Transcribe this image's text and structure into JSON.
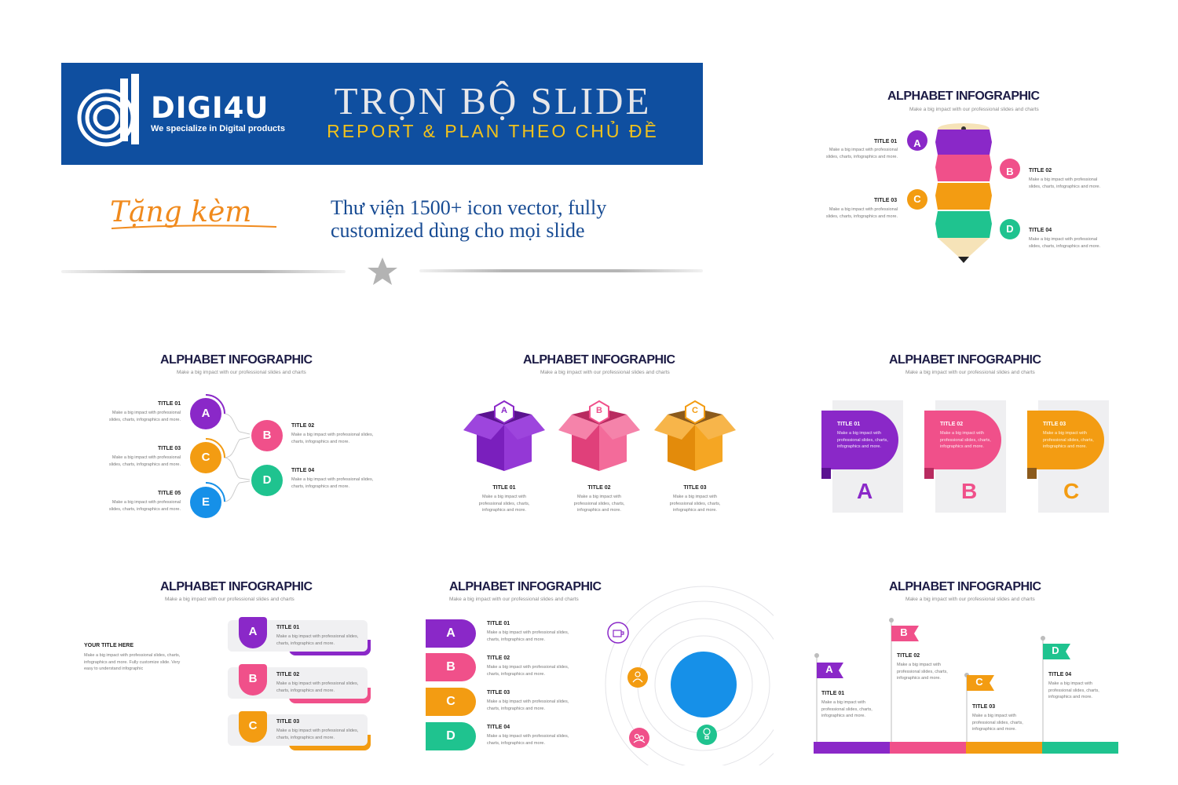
{
  "banner": {
    "brand": "DIGI4U",
    "tagline": "We specialize in Digital products",
    "title": "TRỌN BỘ SLIDE",
    "subtitle": "REPORT & PLAN THEO CHỦ ĐỀ"
  },
  "bonus": {
    "label": "Tặng kèm",
    "line1": "Thư viện 1500+ icon vector, fully",
    "line2": "customized dùng cho mọi slide"
  },
  "slide_common": {
    "title": "ALPHABET INFOGRAPHIC",
    "subtitle": "Make a big impact with our professional slides and charts"
  },
  "colors": {
    "purple": "#8a28c8",
    "pink": "#f0508a",
    "orange": "#f39c12",
    "green": "#1fc38f",
    "blue": "#1690e8",
    "navy": "#0f4fa0"
  },
  "slides": {
    "pencil": {
      "items": [
        {
          "letter": "A",
          "title": "TITLE 01",
          "desc": "Make a big impact with professional slides, charts, infographics and more."
        },
        {
          "letter": "B",
          "title": "TITLE 02",
          "desc": "Make a big impact with professional slides, charts, infographics and more."
        },
        {
          "letter": "C",
          "title": "TITLE 03",
          "desc": "Make a big impact with professional slides, charts, infographics and more."
        },
        {
          "letter": "D",
          "title": "TITLE 04",
          "desc": "Make a big impact with professional slides, charts, infographics and more."
        }
      ]
    },
    "circles": {
      "items": [
        {
          "letter": "A",
          "title": "TITLE 01",
          "desc": "Make a big impact with professional slides, charts, infographics and more."
        },
        {
          "letter": "B",
          "title": "TITLE 02",
          "desc": "Make a big impact with professional slides, charts, infographics and more."
        },
        {
          "letter": "C",
          "title": "TITLE 03",
          "desc": "Make a big impact with professional slides, charts, infographics and more."
        },
        {
          "letter": "D",
          "title": "TITLE 04",
          "desc": "Make a big impact with professional slides, charts, infographics and more."
        },
        {
          "letter": "E",
          "title": "TITLE 05",
          "desc": "Make a big impact with professional slides, charts, infographics and more."
        }
      ]
    },
    "boxes": {
      "items": [
        {
          "letter": "A",
          "title": "TITLE 01",
          "desc": "Make a big impact with professional slides, charts, infographics and more."
        },
        {
          "letter": "B",
          "title": "TITLE 02",
          "desc": "Make a big impact with professional slides, charts, infographics and more."
        },
        {
          "letter": "C",
          "title": "TITLE 03",
          "desc": "Make a big impact with professional slides, charts, infographics and more."
        }
      ]
    },
    "cards": {
      "items": [
        {
          "letter": "A",
          "title": "TITLE 01",
          "desc": "Make a big impact with professional slides, charts, infographics and more."
        },
        {
          "letter": "B",
          "title": "TITLE 02",
          "desc": "Make a big impact with professional slides, charts, infographics and more."
        },
        {
          "letter": "C",
          "title": "TITLE 03",
          "desc": "Make a big impact with professional slides, charts, infographics and more."
        }
      ]
    },
    "tabs": {
      "heading": "YOUR TITLE HERE",
      "heading_desc": "Make a big impact with professional slides, charts, infographics and more. Fully customize slide. Very easy to understand infographic",
      "items": [
        {
          "letter": "A",
          "title": "TITLE 01",
          "desc": "Make a big impact with professional slides, charts, infographics and more."
        },
        {
          "letter": "B",
          "title": "TITLE 02",
          "desc": "Make a big impact with professional slides, charts, infographics and more."
        },
        {
          "letter": "C",
          "title": "TITLE 03",
          "desc": "Make a big impact with professional slides, charts, infographics and more."
        }
      ]
    },
    "orbit": {
      "items": [
        {
          "letter": "A",
          "title": "TITLE 01",
          "desc": "Make a big impact with professional slides, charts, infographics and more."
        },
        {
          "letter": "B",
          "title": "TITLE 02",
          "desc": "Make a big impact with professional slides, charts, infographics and more."
        },
        {
          "letter": "C",
          "title": "TITLE 03",
          "desc": "Make a big impact with professional slides, charts, infographics and more."
        },
        {
          "letter": "D",
          "title": "TITLE 04",
          "desc": "Make a big impact with professional slides, charts, infographics and more."
        }
      ],
      "icons": [
        "coffee-icon",
        "person-icon",
        "team-icon",
        "idea-icon"
      ]
    },
    "flags": {
      "items": [
        {
          "letter": "A",
          "title": "TITLE 01",
          "desc": "Make a big impact with professional slides, charts, infographics and more."
        },
        {
          "letter": "B",
          "title": "TITLE 02",
          "desc": "Make a big impact with professional slides, charts, infographics and more."
        },
        {
          "letter": "C",
          "title": "TITLE 03",
          "desc": "Make a big impact with professional slides, charts, infographics and more."
        },
        {
          "letter": "D",
          "title": "TITLE 04",
          "desc": "Make a big impact with professional slides, charts, infographics and more."
        }
      ]
    }
  }
}
